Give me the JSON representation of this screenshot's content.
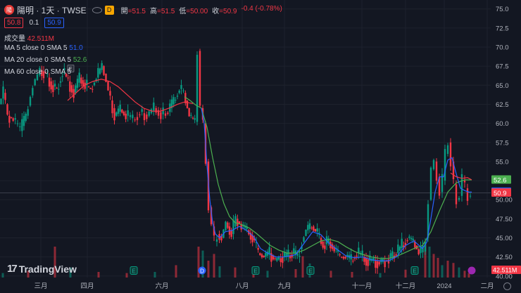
{
  "header": {
    "logo_text": "陽",
    "symbol": "陽明 · 1天 · TWSE",
    "badge": "D",
    "ohlc": [
      {
        "k": "開",
        "v": "=51.5"
      },
      {
        "k": "高",
        "v": "=51.5"
      },
      {
        "k": "低",
        "v": "=50.00"
      },
      {
        "k": "收",
        "v": "=50.9"
      },
      {
        "k": "",
        "v": "-0.4 (-0.78%)"
      }
    ]
  },
  "quote": {
    "bid": "50.8",
    "spread": "0.1",
    "ask": "50.9"
  },
  "indicators": [
    {
      "label": "成交量",
      "value": "42.511M",
      "color": "#f23645"
    },
    {
      "label": "MA 5 close 0 SMA 5",
      "value": "51.0",
      "color": "#2962ff"
    },
    {
      "label": "MA 20 close 0 SMA 5",
      "value": "52.6",
      "color": "#4caf50"
    },
    {
      "label": "MA 60 close 0 SMA 5",
      "value": "",
      "color": "#f23645"
    }
  ],
  "brand": {
    "mark": "17",
    "name": "TradingView"
  },
  "colors": {
    "up": "#089981",
    "down": "#f23645",
    "ma5": "#2962ff",
    "ma20": "#4caf50",
    "ma60": "#f23645",
    "bg": "#131722",
    "grid": "#1e222d",
    "text": "#b2b5be"
  },
  "chart_data": {
    "type": "candlestick",
    "y_axis": {
      "min": 39.8,
      "max": 75.8,
      "ticks": [
        "75.0",
        "72.5",
        "70.0",
        "67.5",
        "65.0",
        "62.5",
        "60.0",
        "57.5",
        "55.0",
        "52.5",
        "50.00",
        "47.50",
        "45.00",
        "42.50",
        "40.00"
      ],
      "tick_values": [
        75,
        72.5,
        70,
        67.5,
        65,
        62.5,
        60,
        57.5,
        55,
        52.5,
        50,
        47.5,
        45,
        42.5,
        40
      ]
    },
    "x_axis": {
      "labels": [
        "三月",
        "四月",
        "六月",
        "八月",
        "九月",
        "十一月",
        "十二月",
        "2024",
        "二月"
      ]
    },
    "price_labels": [
      {
        "text": "52.6",
        "value": 52.6,
        "color": "#4caf50"
      },
      {
        "text": "51.0",
        "value": 51.0,
        "color": "#2962ff"
      },
      {
        "text": "50.9",
        "value": 50.9,
        "color": "#f23645"
      }
    ],
    "volume_label": "42.511M",
    "last_price": 50.9,
    "price_path": [
      [
        0,
        62.5
      ],
      [
        6,
        64
      ],
      [
        12,
        61
      ],
      [
        20,
        60.5
      ],
      [
        30,
        59
      ],
      [
        38,
        61
      ],
      [
        48,
        65
      ],
      [
        58,
        67
      ],
      [
        66,
        66.5
      ],
      [
        74,
        65
      ],
      [
        82,
        64.5
      ],
      [
        90,
        67
      ],
      [
        98,
        65.5
      ],
      [
        106,
        64
      ],
      [
        114,
        66
      ],
      [
        122,
        65
      ],
      [
        130,
        64.5
      ],
      [
        138,
        66
      ],
      [
        146,
        67.5
      ],
      [
        152,
        65.5
      ],
      [
        158,
        63
      ],
      [
        164,
        61
      ],
      [
        172,
        61.8
      ],
      [
        180,
        61
      ],
      [
        190,
        60.5
      ],
      [
        200,
        61.5
      ],
      [
        210,
        61
      ],
      [
        220,
        62
      ],
      [
        230,
        61.2
      ],
      [
        240,
        61.5
      ],
      [
        248,
        63
      ],
      [
        256,
        64.5
      ],
      [
        262,
        64
      ],
      [
        270,
        61
      ],
      [
        278,
        60.2
      ],
      [
        282,
        69.5
      ],
      [
        286,
        62
      ],
      [
        290,
        60
      ],
      [
        294,
        55
      ],
      [
        298,
        49
      ],
      [
        302,
        46.5
      ],
      [
        306,
        44.5
      ],
      [
        310,
        45.5
      ],
      [
        316,
        45
      ],
      [
        322,
        47
      ],
      [
        330,
        45.5
      ],
      [
        336,
        47.5
      ],
      [
        344,
        46.5
      ],
      [
        352,
        46
      ],
      [
        360,
        45
      ],
      [
        368,
        43
      ],
      [
        376,
        42.5
      ],
      [
        384,
        43
      ],
      [
        392,
        42
      ],
      [
        400,
        42.5
      ],
      [
        408,
        42.5
      ],
      [
        416,
        43
      ],
      [
        424,
        42.5
      ],
      [
        430,
        44.5
      ],
      [
        436,
        46
      ],
      [
        444,
        46.5
      ],
      [
        452,
        45.5
      ],
      [
        460,
        44
      ],
      [
        468,
        44.5
      ],
      [
        476,
        43.5
      ],
      [
        484,
        42.5
      ],
      [
        492,
        42.5
      ],
      [
        500,
        42
      ],
      [
        508,
        43
      ],
      [
        516,
        42.5
      ],
      [
        524,
        42
      ],
      [
        532,
        42
      ],
      [
        540,
        41.8
      ],
      [
        548,
        42
      ],
      [
        556,
        42.5
      ],
      [
        564,
        43
      ],
      [
        572,
        44
      ],
      [
        580,
        45
      ],
      [
        588,
        44.5
      ],
      [
        596,
        43
      ],
      [
        602,
        43.2
      ],
      [
        606,
        45
      ],
      [
        610,
        50
      ],
      [
        614,
        54
      ],
      [
        618,
        55
      ],
      [
        622,
        53
      ],
      [
        626,
        51
      ],
      [
        630,
        52.5
      ],
      [
        634,
        56
      ],
      [
        638,
        57.5
      ],
      [
        642,
        55
      ],
      [
        646,
        52
      ],
      [
        650,
        50
      ],
      [
        654,
        50.5
      ],
      [
        658,
        52.5
      ],
      [
        662,
        51.5
      ],
      [
        666,
        50.5
      ],
      [
        670,
        50.9
      ]
    ],
    "ma5": [
      [
        286,
        62
      ],
      [
        290,
        60
      ],
      [
        294,
        54.5
      ],
      [
        298,
        50
      ],
      [
        302,
        47
      ],
      [
        306,
        45.5
      ],
      [
        312,
        45
      ],
      [
        320,
        45.8
      ],
      [
        330,
        46
      ],
      [
        340,
        46.5
      ],
      [
        350,
        46
      ],
      [
        360,
        45.2
      ],
      [
        370,
        43.6
      ],
      [
        380,
        43
      ],
      [
        392,
        42.5
      ],
      [
        404,
        42.5
      ],
      [
        420,
        42.8
      ],
      [
        432,
        44.3
      ],
      [
        444,
        45.8
      ],
      [
        456,
        45.4
      ],
      [
        468,
        44.2
      ],
      [
        480,
        43.4
      ],
      [
        492,
        42.6
      ],
      [
        504,
        42.4
      ],
      [
        516,
        42.5
      ],
      [
        528,
        42.1
      ],
      [
        540,
        42
      ],
      [
        552,
        42
      ],
      [
        564,
        42.6
      ],
      [
        576,
        44
      ],
      [
        588,
        44.6
      ],
      [
        600,
        43.6
      ],
      [
        606,
        44.4
      ],
      [
        612,
        47.5
      ],
      [
        618,
        51
      ],
      [
        624,
        53
      ],
      [
        630,
        53
      ],
      [
        636,
        55.2
      ],
      [
        642,
        55.5
      ],
      [
        648,
        53.4
      ],
      [
        654,
        51.5
      ],
      [
        660,
        51.2
      ],
      [
        666,
        51
      ],
      [
        670,
        51.0
      ]
    ],
    "ma20": [
      [
        262,
        63.5
      ],
      [
        270,
        63
      ],
      [
        278,
        62.4
      ],
      [
        286,
        62
      ],
      [
        294,
        59.5
      ],
      [
        302,
        55.5
      ],
      [
        310,
        52
      ],
      [
        318,
        49.5
      ],
      [
        326,
        47.8
      ],
      [
        334,
        47
      ],
      [
        344,
        46.7
      ],
      [
        354,
        46.3
      ],
      [
        364,
        45.6
      ],
      [
        374,
        44.8
      ],
      [
        384,
        44
      ],
      [
        396,
        43.4
      ],
      [
        408,
        43
      ],
      [
        420,
        43
      ],
      [
        432,
        43.4
      ],
      [
        444,
        44
      ],
      [
        456,
        44.6
      ],
      [
        468,
        44.8
      ],
      [
        480,
        44.5
      ],
      [
        492,
        43.8
      ],
      [
        504,
        43.2
      ],
      [
        516,
        42.8
      ],
      [
        528,
        42.5
      ],
      [
        540,
        42.3
      ],
      [
        552,
        42.3
      ],
      [
        564,
        42.6
      ],
      [
        576,
        43.1
      ],
      [
        588,
        43.6
      ],
      [
        600,
        44
      ],
      [
        612,
        45.8
      ],
      [
        624,
        48.5
      ],
      [
        636,
        51
      ],
      [
        648,
        52.2
      ],
      [
        660,
        52.6
      ],
      [
        670,
        52.6
      ]
    ],
    "ma60": [
      [
        96,
        63
      ],
      [
        108,
        64
      ],
      [
        120,
        65
      ],
      [
        132,
        65.5
      ],
      [
        144,
        65.8
      ],
      [
        156,
        65.5
      ],
      [
        168,
        64.8
      ],
      [
        180,
        63.8
      ],
      [
        192,
        62.8
      ],
      [
        204,
        62
      ],
      [
        216,
        61.6
      ],
      [
        228,
        61.6
      ],
      [
        240,
        62
      ],
      [
        252,
        62.5
      ],
      [
        262,
        62.8
      ],
      [
        274,
        62.6
      ]
    ],
    "short_ma": [
      [
        640,
        53.5
      ],
      [
        648,
        53
      ],
      [
        656,
        52.8
      ],
      [
        664,
        52.9
      ],
      [
        670,
        52.6
      ]
    ],
    "volume_bars": [
      [
        4,
        0.08
      ],
      [
        40,
        0.12
      ],
      [
        78,
        0.55
      ],
      [
        100,
        0.18
      ],
      [
        140,
        0.1
      ],
      [
        180,
        0.08
      ],
      [
        220,
        0.1
      ],
      [
        250,
        0.22
      ],
      [
        282,
        0.55
      ],
      [
        288,
        0.48
      ],
      [
        296,
        0.3
      ],
      [
        304,
        0.42
      ],
      [
        312,
        0.2
      ],
      [
        334,
        0.18
      ],
      [
        360,
        0.14
      ],
      [
        380,
        0.12
      ],
      [
        420,
        0.15
      ],
      [
        430,
        0.38
      ],
      [
        440,
        0.25
      ],
      [
        470,
        0.12
      ],
      [
        500,
        0.1
      ],
      [
        540,
        0.08
      ],
      [
        576,
        0.14
      ],
      [
        604,
        0.62
      ],
      [
        610,
        0.55
      ],
      [
        616,
        0.42
      ],
      [
        622,
        0.35
      ],
      [
        628,
        0.22
      ],
      [
        636,
        0.3
      ],
      [
        644,
        0.26
      ],
      [
        652,
        0.18
      ],
      [
        660,
        0.12
      ],
      [
        666,
        0.08
      ]
    ],
    "event_markers": [
      {
        "x": 100,
        "text": "E",
        "value": 67.2,
        "kind": "earnings-top"
      },
      {
        "x": 190,
        "text": "E",
        "kind": "earnings"
      },
      {
        "x": 287,
        "text": "D",
        "kind": "dividend"
      },
      {
        "x": 363,
        "text": "E",
        "kind": "earnings"
      },
      {
        "x": 441,
        "text": "E",
        "kind": "earnings"
      },
      {
        "x": 589,
        "text": "E",
        "kind": "earnings"
      }
    ]
  }
}
